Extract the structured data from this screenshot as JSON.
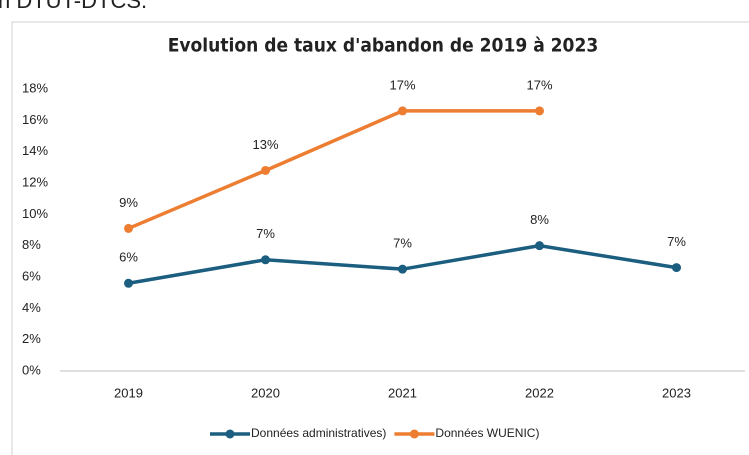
{
  "header": "n DTUT-DTCS.",
  "chart_data": {
    "type": "line",
    "title": "Evolution de taux d'abandon de 2019 à 2023",
    "categories": [
      "2019",
      "2020",
      "2021",
      "2022",
      "2023"
    ],
    "series": [
      {
        "name": "Données administratives)",
        "color": "#1b5e80",
        "values": [
          5.6,
          7.1,
          6.5,
          8.0,
          6.6
        ],
        "value_labels": [
          "6%",
          "7%",
          "7%",
          "8%",
          "7%"
        ]
      },
      {
        "name": "Données WUENIC)",
        "color": "#ed7d31",
        "values": [
          9.1,
          12.8,
          16.6,
          16.6,
          null
        ],
        "value_labels": [
          "9%",
          "13%",
          "17%",
          "17%",
          null
        ]
      }
    ],
    "ylim": [
      0,
      18
    ],
    "yticks": [
      {
        "value": 0,
        "label": "0%"
      },
      {
        "value": 2,
        "label": "2%"
      },
      {
        "value": 4,
        "label": "4%"
      },
      {
        "value": 6,
        "label": "6%"
      },
      {
        "value": 8,
        "label": "8%"
      },
      {
        "value": 10,
        "label": "10%"
      },
      {
        "value": 12,
        "label": "12%"
      },
      {
        "value": 14,
        "label": "14%"
      },
      {
        "value": 16,
        "label": "16%"
      },
      {
        "value": 18,
        "label": "18%"
      }
    ],
    "legend": "bottom"
  }
}
